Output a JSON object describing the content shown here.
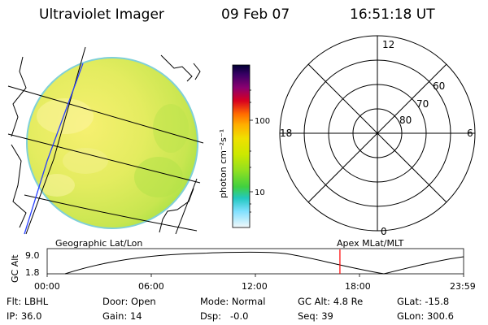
{
  "header": {
    "instrument": "Ultraviolet Imager",
    "date": "09 Feb 07",
    "time": "16:51:18 UT"
  },
  "colorbar": {
    "unit_label": "photon cm⁻²s⁻¹",
    "ticks": [
      "100",
      "10"
    ],
    "colors": [
      "#000033",
      "#330066",
      "#660099",
      "#cc0066",
      "#e60000",
      "#ff6600",
      "#ffaa00",
      "#f0e000",
      "#c8e600",
      "#88e000",
      "#3ad03a",
      "#20d0b0",
      "#66e0ff",
      "#d8f0f8",
      "#ffffff"
    ]
  },
  "polar_plot": {
    "mlt_labels": {
      "top": "12",
      "bottom": "0",
      "left": "18",
      "right": "6"
    },
    "lat_labels": [
      "60",
      "70",
      "80"
    ]
  },
  "timeline": {
    "left_title": "Geographic Lat/Lon",
    "right_title": "Apex MLat/MLT",
    "axis_label": "GC Alt",
    "y_ticks": [
      "9.0",
      "1.8"
    ],
    "x_ticks": [
      "00:00",
      "06:00",
      "12:00",
      "18:00",
      "23:59"
    ],
    "current_time_frac": 0.703,
    "marker_color": "#ff0000"
  },
  "info": {
    "flt": "Flt: LBHL",
    "ip": "IP: 36.0",
    "door": "Door: Open",
    "gain": "Gain: 14",
    "mode": "Mode: Normal",
    "dsp": "Dsp:   -0.0",
    "gc_alt": "GC Alt: 4.8 Re",
    "seq": "Seq: 39",
    "glat": "GLat: -15.8",
    "glon": "GLon: 300.6"
  }
}
